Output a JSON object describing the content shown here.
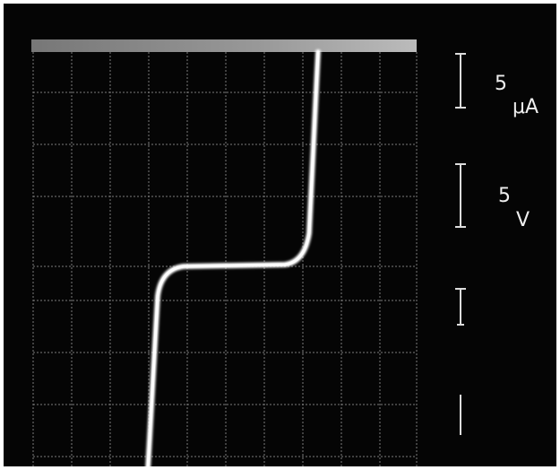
{
  "readouts": [
    {
      "value": "5",
      "unit": "μA"
    },
    {
      "value": "5",
      "unit": "V"
    }
  ]
}
